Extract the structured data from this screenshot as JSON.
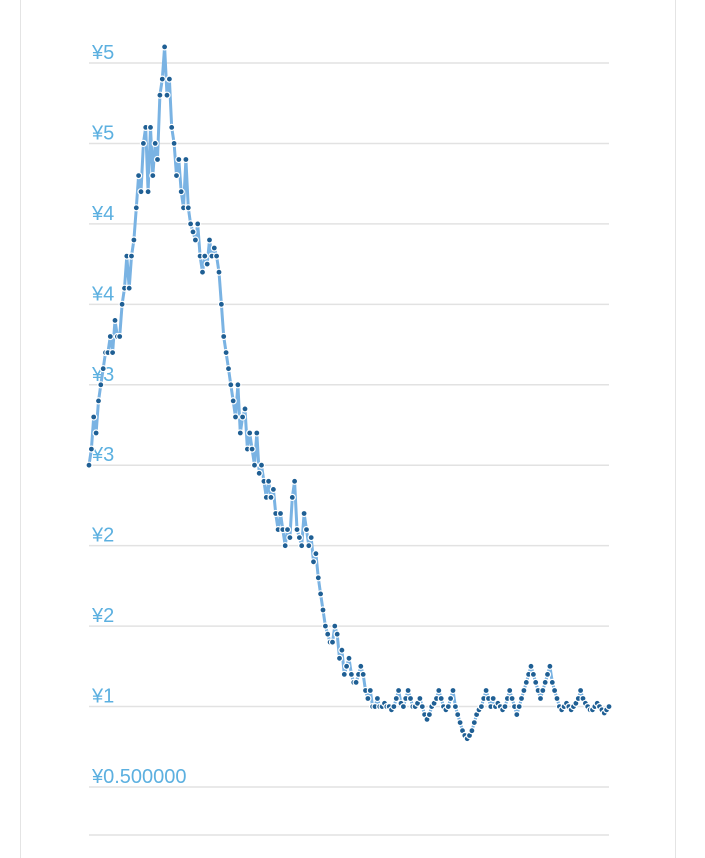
{
  "chart_data": {
    "type": "line",
    "title": "",
    "xlabel": "",
    "ylabel": "",
    "ylim": [
      0,
      5
    ],
    "y_ticks": [
      {
        "value": 5.0,
        "label": "¥5"
      },
      {
        "value": 4.5,
        "label": "¥5"
      },
      {
        "value": 4.0,
        "label": "¥4"
      },
      {
        "value": 3.5,
        "label": "¥4"
      },
      {
        "value": 3.0,
        "label": "¥3"
      },
      {
        "value": 2.5,
        "label": "¥3"
      },
      {
        "value": 2.0,
        "label": "¥2"
      },
      {
        "value": 1.5,
        "label": "¥2"
      },
      {
        "value": 1.0,
        "label": "¥1"
      },
      {
        "value": 0.5,
        "label": "¥0.500000"
      }
    ],
    "grid": true,
    "legend": "none",
    "series": [
      {
        "color": "#7ab3e3",
        "marker_color": "#1f5f94",
        "values": [
          2.5,
          2.6,
          2.8,
          2.7,
          2.9,
          3.0,
          3.1,
          3.2,
          3.2,
          3.3,
          3.2,
          3.4,
          3.3,
          3.3,
          3.5,
          3.6,
          3.8,
          3.6,
          3.8,
          3.9,
          4.1,
          4.3,
          4.2,
          4.5,
          4.6,
          4.2,
          4.6,
          4.3,
          4.5,
          4.4,
          4.8,
          4.9,
          5.1,
          4.8,
          4.9,
          4.6,
          4.5,
          4.3,
          4.4,
          4.2,
          4.1,
          4.4,
          4.1,
          4.0,
          3.95,
          3.9,
          4.0,
          3.8,
          3.7,
          3.8,
          3.75,
          3.9,
          3.8,
          3.85,
          3.8,
          3.7,
          3.5,
          3.3,
          3.2,
          3.1,
          3.0,
          2.9,
          2.8,
          3.0,
          2.7,
          2.8,
          2.85,
          2.6,
          2.7,
          2.6,
          2.5,
          2.7,
          2.45,
          2.5,
          2.4,
          2.3,
          2.4,
          2.3,
          2.35,
          2.2,
          2.1,
          2.2,
          2.1,
          2.0,
          2.1,
          2.05,
          2.3,
          2.4,
          2.1,
          2.05,
          2.0,
          2.2,
          2.1,
          2.0,
          2.05,
          1.9,
          1.95,
          1.8,
          1.7,
          1.6,
          1.5,
          1.45,
          1.4,
          1.4,
          1.5,
          1.45,
          1.3,
          1.35,
          1.2,
          1.25,
          1.3,
          1.2,
          1.15,
          1.15,
          1.2,
          1.25,
          1.2,
          1.1,
          1.05,
          1.1,
          1.0,
          1.0,
          1.05,
          1.0,
          1.0,
          1.02,
          1.0,
          1.0,
          0.98,
          1.0,
          1.05,
          1.1,
          1.02,
          1.0,
          1.05,
          1.1,
          1.05,
          1.0,
          1.0,
          1.02,
          1.05,
          1.0,
          0.95,
          0.92,
          0.95,
          1.0,
          1.02,
          1.05,
          1.1,
          1.05,
          1.0,
          0.98,
          1.0,
          1.05,
          1.1,
          1.0,
          0.95,
          0.9,
          0.85,
          0.82,
          0.8,
          0.82,
          0.85,
          0.9,
          0.95,
          0.98,
          1.0,
          1.05,
          1.1,
          1.05,
          1.0,
          1.05,
          1.0,
          1.02,
          1.0,
          0.98,
          1.0,
          1.05,
          1.1,
          1.05,
          1.0,
          0.95,
          1.0,
          1.05,
          1.1,
          1.15,
          1.2,
          1.25,
          1.2,
          1.15,
          1.1,
          1.05,
          1.1,
          1.15,
          1.2,
          1.25,
          1.15,
          1.1,
          1.05,
          1.0,
          0.98,
          1.0,
          1.02,
          1.0,
          0.98,
          1.0,
          1.02,
          1.05,
          1.1,
          1.05,
          1.02,
          1.0,
          0.98,
          0.98,
          1.0,
          1.02,
          1.0,
          0.98,
          0.96,
          0.98,
          1.0
        ]
      }
    ]
  }
}
